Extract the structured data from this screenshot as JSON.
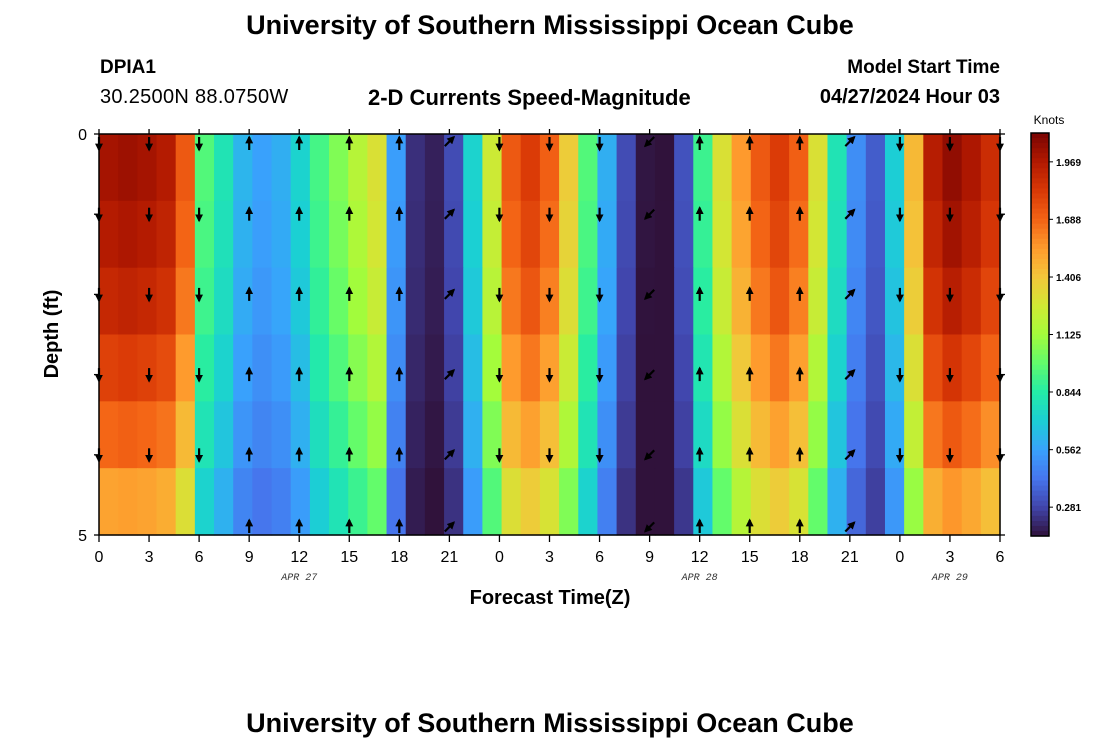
{
  "header": {
    "title": "University of Southern Mississippi Ocean Cube",
    "footer_title": "University of Southern Mississippi Ocean Cube",
    "station": "DPIA1",
    "coordinates": "30.2500N  88.0750W",
    "subtitle": "2-D Currents Speed-Magnitude",
    "model_start_label": "Model Start Time",
    "model_start_value": "04/27/2024 Hour 03"
  },
  "chart_data": {
    "type": "heatmap",
    "title": "2-D Currents Speed-Magnitude",
    "xlabel": "Forecast Time(Z)",
    "ylabel": "Depth (ft)",
    "y_ticks": [
      "0",
      "5"
    ],
    "y_range": [
      0,
      5
    ],
    "x_tick_labels": [
      "0",
      "3",
      "6",
      "9",
      "12",
      "15",
      "18",
      "21",
      "0",
      "3",
      "6",
      "9",
      "12",
      "15",
      "18",
      "21",
      "0",
      "3",
      "6"
    ],
    "date_labels": [
      {
        "label": "APR 27",
        "tick_index": 4
      },
      {
        "label": "APR 28",
        "tick_index": 12
      },
      {
        "label": "APR 29",
        "tick_index": 17
      }
    ],
    "colorbar": {
      "unit": "Knots",
      "min": 0.14,
      "max": 2.11,
      "ticks": [
        "1.969",
        "1.688",
        "1.406",
        "1.125",
        "0.844",
        "0.562",
        "0.281"
      ],
      "colors": [
        "#30123b",
        "#4145ab",
        "#4675ed",
        "#39a2fc",
        "#1bcfd4",
        "#24eca6",
        "#61fc6c",
        "#a4fc3b",
        "#d1e834",
        "#f3c63a",
        "#fe9b2d",
        "#f36315",
        "#d93806",
        "#b11901",
        "#7a0402"
      ]
    },
    "depth_levels": 5,
    "speed_profile_knots": [
      2.0,
      2.02,
      2.0,
      1.96,
      1.72,
      0.95,
      0.8,
      0.62,
      0.56,
      0.6,
      0.72,
      0.92,
      1.05,
      1.18,
      1.3,
      0.55,
      0.22,
      0.18,
      0.3,
      0.72,
      1.25,
      1.72,
      1.82,
      1.7,
      1.38,
      0.95,
      0.6,
      0.3,
      0.15,
      0.14,
      0.32,
      0.9,
      1.3,
      1.55,
      1.72,
      1.82,
      1.7,
      1.3,
      0.8,
      0.5,
      0.35,
      0.7,
      1.45,
      1.95,
      2.05,
      1.98,
      1.88
    ],
    "depth_factors": [
      1.0,
      0.98,
      0.95,
      0.9,
      0.84,
      0.76
    ],
    "arrow_directions": [
      "S",
      "S",
      "S",
      "N",
      "N",
      "N",
      "N",
      "NE",
      "S",
      "S",
      "S",
      "SW",
      "N",
      "N",
      "N",
      "NE",
      "S",
      "S",
      "S"
    ],
    "arrow_rows": [
      0.0,
      1.0,
      2.0,
      3.0,
      4.0,
      4.9
    ]
  }
}
